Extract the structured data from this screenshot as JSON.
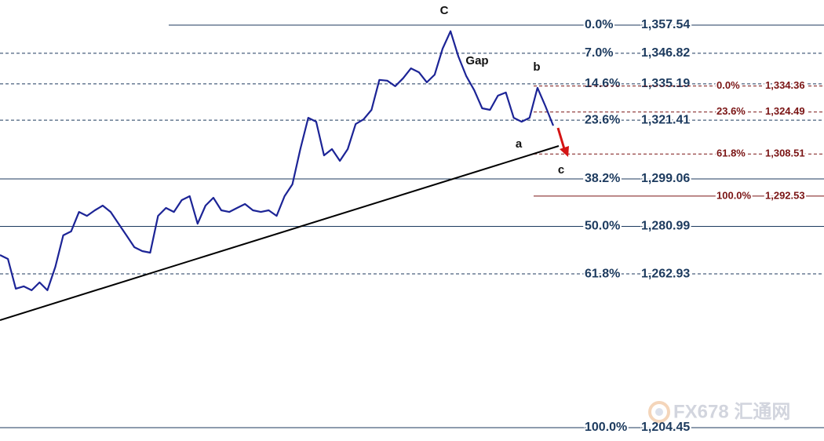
{
  "chart_data": {
    "type": "line",
    "color": "#1c2496",
    "values": [
      1270.1,
      1268.6,
      1257.3,
      1258.2,
      1256.7,
      1259.7,
      1256.7,
      1265.6,
      1277.6,
      1279.1,
      1286.5,
      1285.0,
      1287.1,
      1288.9,
      1286.5,
      1282.0,
      1277.6,
      1273.1,
      1271.6,
      1271.0,
      1285.0,
      1288.0,
      1286.5,
      1291.0,
      1292.5,
      1282.0,
      1288.9,
      1291.9,
      1287.1,
      1286.5,
      1288.0,
      1289.5,
      1287.1,
      1286.5,
      1287.1,
      1285.0,
      1292.5,
      1297.0,
      1310.4,
      1322.3,
      1320.8,
      1308.0,
      1310.4,
      1305.9,
      1310.4,
      1319.9,
      1321.7,
      1325.3,
      1336.7,
      1336.4,
      1334.3,
      1337.3,
      1341.1,
      1339.6,
      1335.8,
      1338.7,
      1348.6,
      1355.2,
      1345.6,
      1338.1,
      1332.8,
      1325.9,
      1325.3,
      1330.7,
      1331.9,
      1322.3,
      1320.8,
      1322.3,
      1333.7,
      1326.8,
      1319.3
    ],
    "ylim": [
      1199.38,
      1367.09
    ],
    "fib_sets": [
      {
        "color": "#1c3a5e",
        "levels": [
          {
            "ratio": "0.0%",
            "price": {
              "value": 1357.54,
              "label": "1,357.54"
            }
          },
          {
            "ratio": "7.0%",
            "price": {
              "value": 1346.82,
              "label": "1,346.82"
            }
          },
          {
            "ratio": "14.6%",
            "price": {
              "value": 1335.19,
              "label": "1,335.19"
            }
          },
          {
            "ratio": "23.6%",
            "price": {
              "value": 1321.41,
              "label": "1,321.41"
            }
          },
          {
            "ratio": "38.2%",
            "price": {
              "value": 1299.06,
              "label": "1,299.06"
            }
          },
          {
            "ratio": "50.0%",
            "price": {
              "value": 1280.99,
              "label": "1,280.99"
            }
          },
          {
            "ratio": "61.8%",
            "price": {
              "value": 1262.93,
              "label": "1,262.93"
            }
          },
          {
            "ratio": "100.0%",
            "price": {
              "value": 1204.45,
              "label": "1,204.45"
            }
          }
        ]
      },
      {
        "color": "#7a1414",
        "levels": [
          {
            "ratio": "0.0%",
            "price": {
              "value": 1334.36,
              "label": "1,334.36"
            }
          },
          {
            "ratio": "23.6%",
            "price": {
              "value": 1324.49,
              "label": "1,324.49"
            }
          },
          {
            "ratio": "61.8%",
            "price": {
              "value": 1308.51,
              "label": "1,308.51"
            }
          },
          {
            "ratio": "100.0%",
            "price": {
              "value": 1292.53,
              "label": "1,292.53"
            }
          }
        ]
      }
    ],
    "annotations": [
      "C",
      "Gap",
      "b",
      "a",
      "c"
    ],
    "watermark": "FX678 汇通网"
  }
}
